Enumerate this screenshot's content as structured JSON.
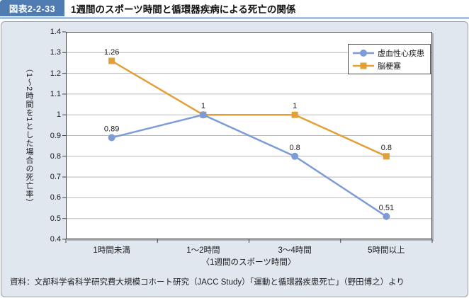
{
  "header": {
    "badge": "図表2-2-33",
    "title": "1週間のスポーツ時間と循環器疾病による死亡の関係"
  },
  "theme": {
    "badge_bg": "#4f7cb2",
    "header_rule": "#a9c3de",
    "panel_bg": "#e0e7ef",
    "grid_color": "#b8b8b8",
    "plot_border": "#454545"
  },
  "chart_data": {
    "type": "line",
    "categories": [
      "1時間未満",
      "1～2時間",
      "3～4時間",
      "5時間以上"
    ],
    "series": [
      {
        "name": "虚血性心疾患",
        "marker": "circle",
        "color": "#7d9cd6",
        "values": [
          0.89,
          1,
          0.8,
          0.51
        ],
        "labels": [
          "0.89",
          "1",
          "0.8",
          "0.51"
        ]
      },
      {
        "name": "脳梗塞",
        "marker": "square",
        "color": "#e2a038",
        "values": [
          1.26,
          1,
          1,
          0.8
        ],
        "labels": [
          "1.26",
          "",
          "1",
          "0.8"
        ]
      }
    ],
    "xlabel": "〈1週間のスポーツ時間〉",
    "ylabel": "（1～2時間を1とした場合の死亡率）",
    "ylim": [
      0.4,
      1.4
    ],
    "yticks": [
      "1.4",
      "1.3",
      "1.2",
      "1.1",
      "1",
      "0.9",
      "0.8",
      "0.7",
      "0.6",
      "0.5",
      "0.4"
    ],
    "grid": true,
    "legend_position": "top-right"
  },
  "footer": {
    "source": "資料：文部科学省科学研究費大規模コホート研究（JACC Study）「運動と循環器疾患死亡」（野田博之）より"
  }
}
